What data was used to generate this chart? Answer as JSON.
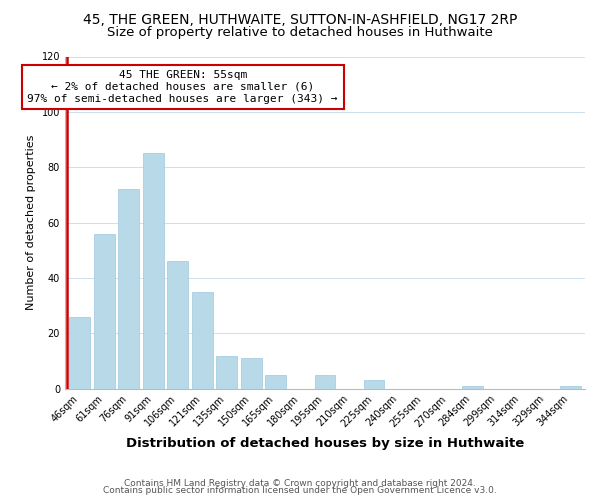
{
  "title": "45, THE GREEN, HUTHWAITE, SUTTON-IN-ASHFIELD, NG17 2RP",
  "subtitle": "Size of property relative to detached houses in Huthwaite",
  "xlabel": "Distribution of detached houses by size in Huthwaite",
  "ylabel": "Number of detached properties",
  "categories": [
    "46sqm",
    "61sqm",
    "76sqm",
    "91sqm",
    "106sqm",
    "121sqm",
    "135sqm",
    "150sqm",
    "165sqm",
    "180sqm",
    "195sqm",
    "210sqm",
    "225sqm",
    "240sqm",
    "255sqm",
    "270sqm",
    "284sqm",
    "299sqm",
    "314sqm",
    "329sqm",
    "344sqm"
  ],
  "values": [
    26,
    56,
    72,
    85,
    46,
    35,
    12,
    11,
    5,
    0,
    5,
    0,
    3,
    0,
    0,
    0,
    1,
    0,
    0,
    0,
    1
  ],
  "bar_color": "#b8d9e8",
  "highlight_line_color": "#cc0000",
  "ylim": [
    0,
    120
  ],
  "yticks": [
    0,
    20,
    40,
    60,
    80,
    100,
    120
  ],
  "annotation_title": "45 THE GREEN: 55sqm",
  "annotation_line1": "← 2% of detached houses are smaller (6)",
  "annotation_line2": "97% of semi-detached houses are larger (343) →",
  "annotation_box_color": "#ffffff",
  "annotation_box_edgecolor": "#cc0000",
  "footer_line1": "Contains HM Land Registry data © Crown copyright and database right 2024.",
  "footer_line2": "Contains public sector information licensed under the Open Government Licence v3.0.",
  "title_fontsize": 10,
  "subtitle_fontsize": 9.5,
  "xlabel_fontsize": 9.5,
  "ylabel_fontsize": 8,
  "tick_fontsize": 7,
  "annotation_fontsize": 8,
  "footer_fontsize": 6.5,
  "grid_color": "#cce0ee",
  "background_color": "#ffffff"
}
